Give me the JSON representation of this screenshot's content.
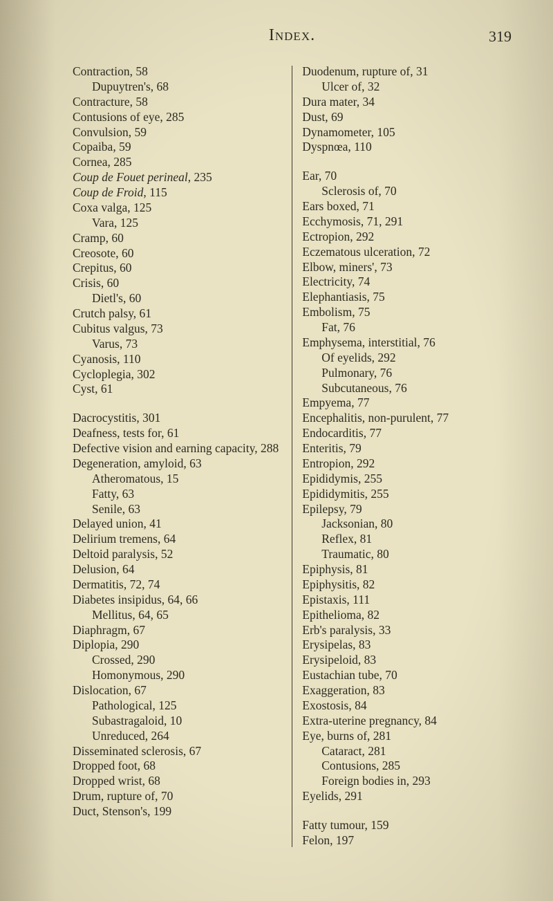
{
  "page": {
    "title": "Index.",
    "number": "319"
  },
  "left_column": [
    {
      "lvl": 0,
      "t": "Contraction, 58"
    },
    {
      "lvl": 1,
      "t": "Dupuytren's, 68"
    },
    {
      "lvl": 0,
      "t": "Contracture, 58"
    },
    {
      "lvl": 0,
      "t": "Contusions of eye, 285"
    },
    {
      "lvl": 0,
      "t": "Convulsion, 59"
    },
    {
      "lvl": 0,
      "t": "Copaiba, 59"
    },
    {
      "lvl": 0,
      "t": "Cornea, 285"
    },
    {
      "lvl": 0,
      "t": "",
      "html": "<span class='italic'>Coup de Fouet perineal</span>, 235"
    },
    {
      "lvl": 0,
      "t": "",
      "html": "<span class='italic'>Coup de Froid</span>, 115"
    },
    {
      "lvl": 0,
      "t": "Coxa valga, 125"
    },
    {
      "lvl": 1,
      "t": "Vara, 125"
    },
    {
      "lvl": 0,
      "t": "Cramp, 60"
    },
    {
      "lvl": 0,
      "t": "Creosote, 60"
    },
    {
      "lvl": 0,
      "t": "Crepitus, 60"
    },
    {
      "lvl": 0,
      "t": "Crisis, 60"
    },
    {
      "lvl": 1,
      "t": "Dietl's, 60"
    },
    {
      "lvl": 0,
      "t": "Crutch palsy, 61"
    },
    {
      "lvl": 0,
      "t": "Cubitus valgus, 73"
    },
    {
      "lvl": 1,
      "t": "Varus, 73"
    },
    {
      "lvl": 0,
      "t": "Cyanosis, 110"
    },
    {
      "lvl": 0,
      "t": "Cycloplegia, 302"
    },
    {
      "lvl": 0,
      "t": "Cyst, 61"
    },
    {
      "spacer": true
    },
    {
      "lvl": 0,
      "t": "Dacrocystitis, 301"
    },
    {
      "lvl": 0,
      "t": "Deafness, tests for, 61"
    },
    {
      "lvl": 0,
      "hang": true,
      "t": "Defective  vision  and  earning capacity, 288"
    },
    {
      "lvl": 0,
      "t": "Degeneration, amyloid, 63"
    },
    {
      "lvl": 1,
      "t": "Atheromatous, 15"
    },
    {
      "lvl": 1,
      "t": "Fatty, 63"
    },
    {
      "lvl": 1,
      "t": "Senile, 63"
    },
    {
      "lvl": 0,
      "t": "Delayed union, 41"
    },
    {
      "lvl": 0,
      "t": "Delirium tremens, 64"
    },
    {
      "lvl": 0,
      "t": "Deltoid paralysis, 52"
    },
    {
      "lvl": 0,
      "t": "Delusion, 64"
    },
    {
      "lvl": 0,
      "t": "Dermatitis, 72, 74"
    },
    {
      "lvl": 0,
      "t": "Diabetes insipidus, 64, 66"
    },
    {
      "lvl": 1,
      "t": "Mellitus, 64, 65"
    },
    {
      "lvl": 0,
      "t": "Diaphragm, 67"
    },
    {
      "lvl": 0,
      "t": "Diplopia, 290"
    },
    {
      "lvl": 1,
      "t": "Crossed, 290"
    },
    {
      "lvl": 1,
      "t": "Homonymous, 290"
    },
    {
      "lvl": 0,
      "t": "Dislocation, 67"
    },
    {
      "lvl": 1,
      "t": "Pathological, 125"
    },
    {
      "lvl": 1,
      "t": "Subastragaloid, 10"
    },
    {
      "lvl": 1,
      "t": "Unreduced, 264"
    },
    {
      "lvl": 0,
      "t": "Disseminated sclerosis, 67"
    },
    {
      "lvl": 0,
      "t": "Dropped foot, 68"
    },
    {
      "lvl": 0,
      "t": "Dropped wrist, 68"
    },
    {
      "lvl": 0,
      "t": "Drum, rupture of, 70"
    },
    {
      "lvl": 0,
      "t": "Duct, Stenson's, 199"
    }
  ],
  "right_column": [
    {
      "lvl": 0,
      "t": "Duodenum, rupture of, 31"
    },
    {
      "lvl": 1,
      "t": "Ulcer of, 32"
    },
    {
      "lvl": 0,
      "t": "Dura mater, 34"
    },
    {
      "lvl": 0,
      "t": "Dust, 69"
    },
    {
      "lvl": 0,
      "t": "Dynamometer, 105"
    },
    {
      "lvl": 0,
      "t": "Dyspnœa, 110"
    },
    {
      "spacer": true
    },
    {
      "lvl": 0,
      "t": "Ear, 70"
    },
    {
      "lvl": 1,
      "t": "Sclerosis of, 70"
    },
    {
      "lvl": 0,
      "t": "Ears boxed, 71"
    },
    {
      "lvl": 0,
      "t": "Ecchymosis, 71, 291"
    },
    {
      "lvl": 0,
      "t": "Ectropion, 292"
    },
    {
      "lvl": 0,
      "t": "Eczematous ulceration, 72"
    },
    {
      "lvl": 0,
      "t": "Elbow, miners', 73"
    },
    {
      "lvl": 0,
      "t": "Electricity, 74"
    },
    {
      "lvl": 0,
      "t": "Elephantiasis, 75"
    },
    {
      "lvl": 0,
      "t": "Embolism, 75"
    },
    {
      "lvl": 1,
      "t": "Fat, 76"
    },
    {
      "lvl": 0,
      "t": "Emphysema, interstitial, 76"
    },
    {
      "lvl": 1,
      "t": "Of eyelids, 292"
    },
    {
      "lvl": 1,
      "t": "Pulmonary, 76"
    },
    {
      "lvl": 1,
      "t": "Subcutaneous, 76"
    },
    {
      "lvl": 0,
      "t": "Empyema, 77"
    },
    {
      "lvl": 0,
      "t": "Encephalitis, non-purulent, 77"
    },
    {
      "lvl": 0,
      "t": "Endocarditis, 77"
    },
    {
      "lvl": 0,
      "t": "Enteritis, 79"
    },
    {
      "lvl": 0,
      "t": "Entropion, 292"
    },
    {
      "lvl": 0,
      "t": "Epididymis, 255"
    },
    {
      "lvl": 0,
      "t": "Epididymitis, 255"
    },
    {
      "lvl": 0,
      "t": "Epilepsy, 79"
    },
    {
      "lvl": 1,
      "t": "Jacksonian, 80"
    },
    {
      "lvl": 1,
      "t": "Reflex, 81"
    },
    {
      "lvl": 1,
      "t": "Traumatic, 80"
    },
    {
      "lvl": 0,
      "t": "Epiphysis, 81"
    },
    {
      "lvl": 0,
      "t": "Epiphysitis, 82"
    },
    {
      "lvl": 0,
      "t": "Epistaxis, 111"
    },
    {
      "lvl": 0,
      "t": "Epithelioma, 82"
    },
    {
      "lvl": 0,
      "t": "Erb's paralysis, 33"
    },
    {
      "lvl": 0,
      "t": "Erysipelas, 83"
    },
    {
      "lvl": 0,
      "t": "Erysipeloid, 83"
    },
    {
      "lvl": 0,
      "t": "Eustachian tube, 70"
    },
    {
      "lvl": 0,
      "t": "Exaggeration, 83"
    },
    {
      "lvl": 0,
      "t": "Exostosis, 84"
    },
    {
      "lvl": 0,
      "t": "Extra-uterine pregnancy, 84"
    },
    {
      "lvl": 0,
      "t": "Eye, burns of, 281"
    },
    {
      "lvl": 1,
      "t": "Cataract, 281"
    },
    {
      "lvl": 1,
      "t": "Contusions, 285"
    },
    {
      "lvl": 1,
      "t": "Foreign bodies in, 293"
    },
    {
      "lvl": 0,
      "t": "Eyelids, 291"
    },
    {
      "spacer": true
    },
    {
      "lvl": 0,
      "t": "Fatty tumour, 159"
    },
    {
      "lvl": 0,
      "t": "Felon, 197"
    }
  ]
}
